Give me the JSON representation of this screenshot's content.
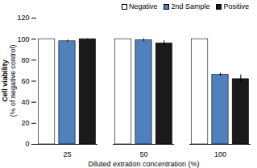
{
  "chart_data": {
    "type": "bar",
    "x_label": "Diluted extration concentration (%)",
    "y_label": [
      "Cell viability",
      "(% of negative control)"
    ],
    "categories": [
      "25",
      "50",
      "100"
    ],
    "series": [
      {
        "name": "Negative",
        "color": "#ffffff",
        "values": [
          100,
          100,
          100
        ]
      },
      {
        "name": "2nd Sample",
        "color": "#4f81bd",
        "values": [
          98,
          99,
          66
        ],
        "errors": [
          1,
          1.5,
          1.5
        ]
      },
      {
        "name": "Positive",
        "color": "#1a1a1a",
        "values": [
          100,
          96,
          62
        ],
        "errors": [
          0.5,
          2.5,
          4
        ]
      }
    ],
    "ylim": [
      0,
      120
    ],
    "yticks": [
      0,
      20,
      40,
      60,
      80,
      100,
      120
    ],
    "grid": false,
    "legend": "top"
  }
}
